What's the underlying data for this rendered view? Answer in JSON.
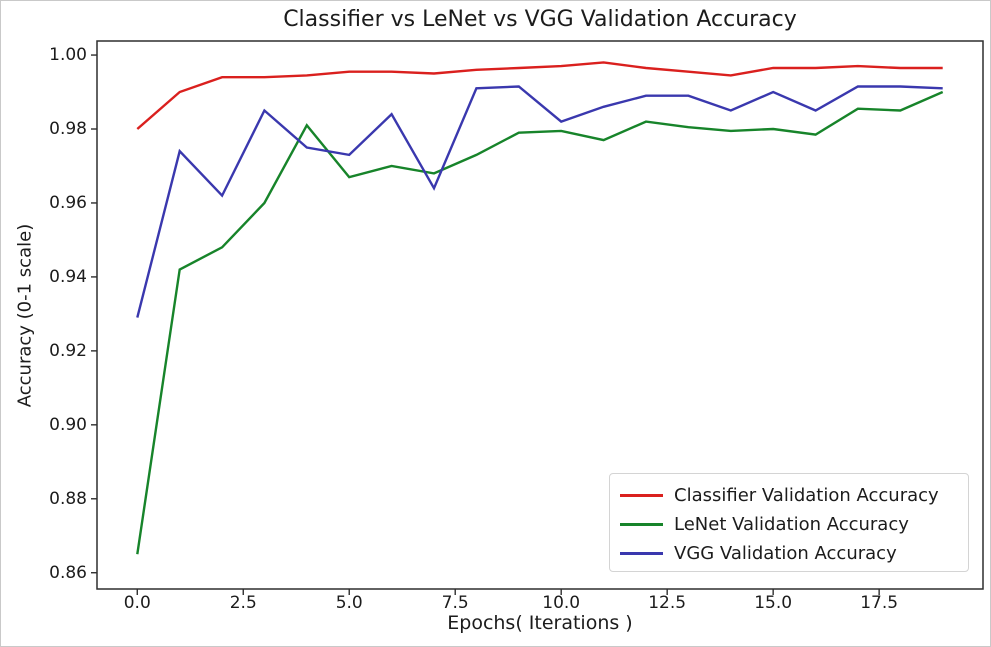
{
  "chart_data": {
    "type": "line",
    "title": "Classifier vs LeNet vs VGG Validation Accuracy",
    "xlabel": "Epochs( Iterations )",
    "ylabel": "Accuracy (0-1 scale)",
    "x": [
      0,
      1,
      2,
      3,
      4,
      5,
      6,
      7,
      8,
      9,
      10,
      11,
      12,
      13,
      14,
      15,
      16,
      17,
      18,
      19
    ],
    "series": [
      {
        "label": "Classifier Validation Accuracy",
        "color": "#da201e",
        "values": [
          0.98,
          0.99,
          0.994,
          0.994,
          0.9945,
          0.9955,
          0.9955,
          0.995,
          0.996,
          0.9965,
          0.997,
          0.998,
          0.9965,
          0.9955,
          0.9945,
          0.9965,
          0.9965,
          0.997,
          0.9965,
          0.9965
        ]
      },
      {
        "label": "LeNet Validation Accuracy",
        "color": "#17842a",
        "values": [
          0.865,
          0.942,
          0.948,
          0.96,
          0.981,
          0.967,
          0.97,
          0.968,
          0.973,
          0.979,
          0.9795,
          0.977,
          0.982,
          0.9805,
          0.9795,
          0.98,
          0.9785,
          0.9855,
          0.985,
          0.99
        ]
      },
      {
        "label": "VGG Validation Accuracy",
        "color": "#3a38ae",
        "values": [
          0.929,
          0.974,
          0.962,
          0.985,
          0.975,
          0.973,
          0.984,
          0.964,
          0.991,
          0.9915,
          0.982,
          0.986,
          0.989,
          0.989,
          0.985,
          0.99,
          0.985,
          0.9915,
          0.9915,
          0.991
        ]
      }
    ],
    "xticks": {
      "values": [
        0,
        2.5,
        5,
        7.5,
        10,
        12.5,
        15,
        17.5
      ],
      "labels": [
        "0.0",
        "2.5",
        "5.0",
        "7.5",
        "10.0",
        "12.5",
        "15.0",
        "17.5"
      ]
    },
    "yticks": {
      "values": [
        1.0,
        0.98,
        0.96,
        0.94,
        0.92,
        0.9,
        0.88,
        0.86
      ],
      "labels": [
        "1.00",
        "0.98",
        "0.96",
        "0.94",
        "0.92",
        "0.90",
        "0.88",
        "0.86"
      ]
    },
    "xlim": [
      -0.95,
      19.95
    ],
    "ylim": [
      0.8556,
      1.0038
    ],
    "grid": false,
    "legend_position": "lower right"
  }
}
